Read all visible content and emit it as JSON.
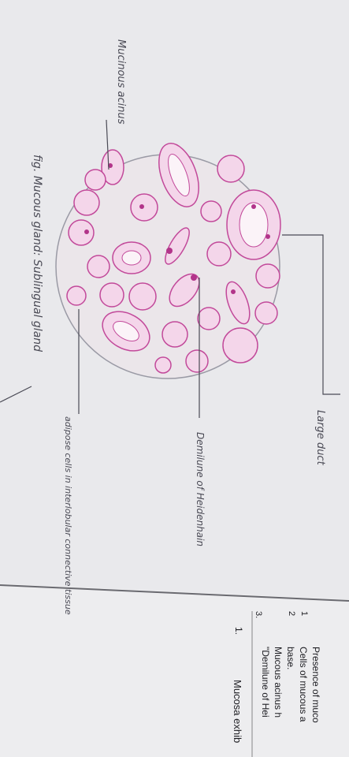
{
  "labels": {
    "mucinous_acinus": "Mucinous acinus",
    "large_duct": "Large duct",
    "demilune": "Demilune of Heidenhain",
    "adipose": "adipose cells in interlobular connective tissue",
    "figure_caption": "fig. Mucous gland: Sublingual gland"
  },
  "printed_text": {
    "numbers": [
      "1",
      "2",
      "3."
    ],
    "lines": [
      "Presence of muco",
      "Cells of mucous a",
      "base.",
      "Mucous acinus h",
      "\"Demilune of Hei"
    ],
    "item_number": "1.",
    "item_text": "Mucosa exhib"
  }
}
